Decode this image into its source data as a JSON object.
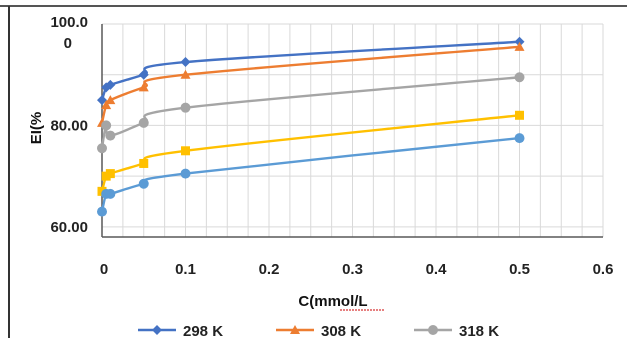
{
  "chart_data": {
    "type": "line",
    "title": "",
    "xlabel": "C(mmol/L",
    "ylabel": "EI(%",
    "xlim": [
      0,
      0.6
    ],
    "ylim": [
      58,
      100
    ],
    "x_ticks": [
      "0",
      "0.1",
      "0.2",
      "0.3",
      "0.4",
      "0.5",
      "0.6"
    ],
    "y_ticks": [
      {
        "value": 60,
        "label": "60.00"
      },
      {
        "value": 80,
        "label": "80.00"
      },
      {
        "value": 100,
        "label": "100.0\n0"
      }
    ],
    "grid": true,
    "legend_position": "bottom",
    "series": [
      {
        "name": "298 K",
        "color": "#4472C4",
        "marker": "diamond",
        "x": [
          0,
          0.005,
          0.01,
          0.05,
          0.1,
          0.5
        ],
        "y": [
          85,
          87.5,
          88,
          90,
          92.5,
          96.5
        ]
      },
      {
        "name": "308 K",
        "color": "#ED7D31",
        "marker": "triangle",
        "x": [
          0,
          0.005,
          0.01,
          0.05,
          0.1,
          0.5
        ],
        "y": [
          80.5,
          84,
          85,
          87.5,
          90,
          95.5
        ]
      },
      {
        "name": "318 K",
        "color": "#A5A5A5",
        "marker": "circle",
        "x": [
          0,
          0.005,
          0.01,
          0.05,
          0.1,
          0.5
        ],
        "y": [
          75.5,
          80,
          78,
          80.5,
          83.5,
          89.5
        ]
      },
      {
        "name": "",
        "color": "#FFC000",
        "marker": "square",
        "x": [
          0,
          0.005,
          0.01,
          0.05,
          0.1,
          0.5
        ],
        "y": [
          67,
          70,
          70.5,
          72.5,
          75,
          82
        ]
      },
      {
        "name": "",
        "color": "#5B9BD5",
        "marker": "circle",
        "x": [
          0,
          0.005,
          0.01,
          0.05,
          0.1,
          0.5
        ],
        "y": [
          63,
          66.5,
          66.5,
          68.5,
          70.5,
          77.5
        ]
      }
    ]
  }
}
